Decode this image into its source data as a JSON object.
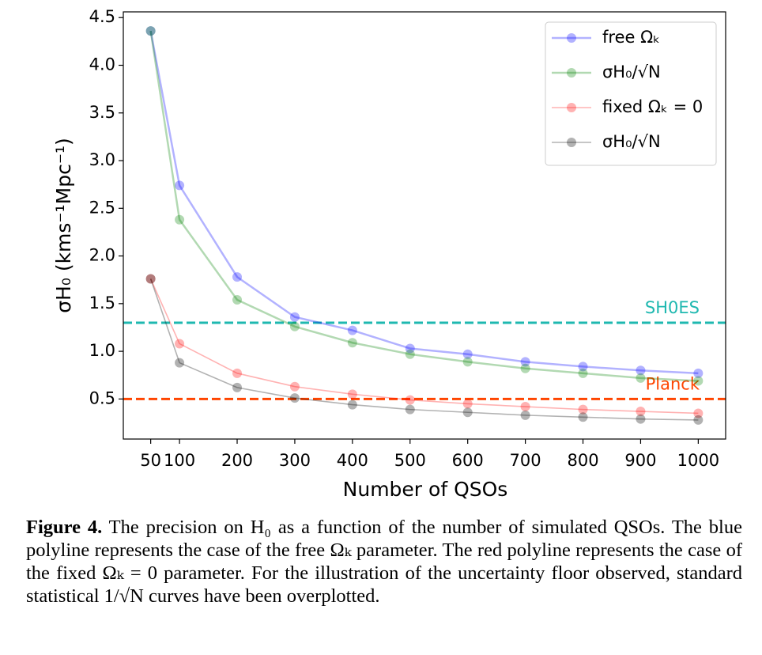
{
  "chart_data": {
    "type": "line",
    "xlabel": "Number of QSOs",
    "ylabel": "σH₀ (kms⁻¹Mpc⁻¹)",
    "x": [
      50,
      100,
      200,
      300,
      400,
      500,
      600,
      700,
      800,
      900,
      1000
    ],
    "series": [
      {
        "name": "free Ωₖ",
        "color": "#0000ff",
        "values": [
          4.36,
          2.74,
          1.78,
          1.36,
          1.22,
          1.03,
          0.97,
          0.89,
          0.84,
          0.8,
          0.77
        ]
      },
      {
        "name": "σH₀/√N",
        "color": "#008000",
        "values": [
          4.36,
          2.38,
          1.54,
          1.26,
          1.09,
          0.97,
          0.89,
          0.82,
          0.77,
          0.72,
          0.69
        ]
      },
      {
        "name": "fixed Ωₖ = 0",
        "color": "#ff0000",
        "values": [
          1.76,
          1.08,
          0.77,
          0.63,
          0.55,
          0.49,
          0.45,
          0.42,
          0.39,
          0.37,
          0.35
        ]
      },
      {
        "name": "σH₀/√N",
        "color": "#000000",
        "values": [
          1.76,
          0.88,
          0.62,
          0.51,
          0.44,
          0.39,
          0.36,
          0.33,
          0.31,
          0.29,
          0.28
        ]
      }
    ],
    "hlines": [
      {
        "value": 1.3,
        "label": "SH0ES",
        "color": "#1fb8b0"
      },
      {
        "value": 0.5,
        "label": "Planck",
        "color": "#ff4500"
      }
    ],
    "xlim": [
      2.5,
      1047.5
    ],
    "ylim": [
      0.08,
      4.56
    ],
    "xticks": [
      50,
      100,
      200,
      300,
      400,
      500,
      600,
      700,
      800,
      900,
      1000
    ],
    "yticks": [
      {
        "value": 0.5,
        "label": "0.5"
      },
      {
        "value": 1,
        "label": "1.0"
      },
      {
        "value": 1.5,
        "label": "1.5"
      },
      {
        "value": 2,
        "label": "2.0"
      },
      {
        "value": 2.5,
        "label": "2.5"
      },
      {
        "value": 3,
        "label": "3.0"
      },
      {
        "value": 3.5,
        "label": "3.5"
      },
      {
        "value": 4,
        "label": "4.0"
      },
      {
        "value": 4.5,
        "label": "4.5"
      }
    ],
    "legend": "upper right"
  },
  "caption": {
    "label": "Figure 4.",
    "text": "The precision on H₀ as a function of the number of simulated QSOs. The blue polyline represents the case of the free Ωₖ parameter. The red polyline represents the case of the fixed Ωₖ = 0 parameter. For the illustration of the uncertainty floor observed, standard statistical 1/√N curves have been overplotted."
  }
}
